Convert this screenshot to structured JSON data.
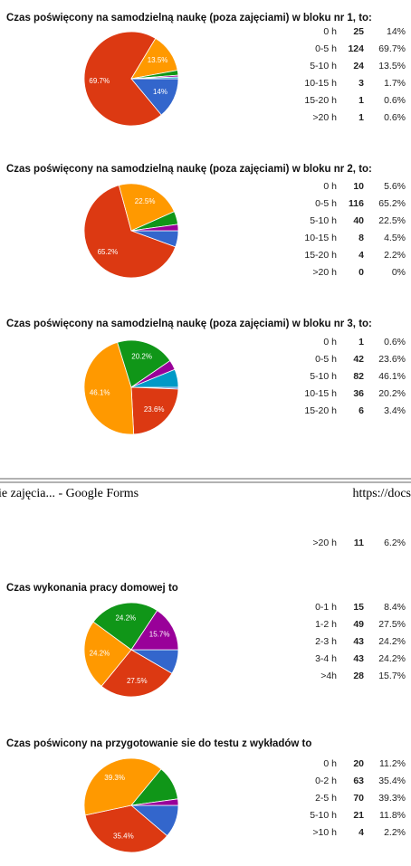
{
  "chart_data": [
    {
      "type": "pie",
      "title": "Czas poświęcony na samodzielną naukę (poza zajęciami) w bloku nr 1, to:",
      "categories": [
        "0 h",
        "0-5 h",
        "5-10 h",
        "10-15 h",
        "15-20 h",
        ">20 h"
      ],
      "counts": [
        25,
        124,
        24,
        3,
        1,
        1
      ],
      "values": [
        14,
        69.7,
        13.5,
        1.7,
        0.6,
        0.6
      ],
      "value_labels": [
        "14%",
        "69.7%",
        "13.5%",
        "1.7%",
        "0.6%",
        "0.6%"
      ],
      "colors": [
        "#3366cc",
        "#dc3912",
        "#ff9900",
        "#109618",
        "#990099",
        "#0099c6"
      ]
    },
    {
      "type": "pie",
      "title": "Czas poświęcony na samodzielną naukę (poza zajęciami) w bloku nr 2, to:",
      "categories": [
        "0 h",
        "0-5 h",
        "5-10 h",
        "10-15 h",
        "15-20 h",
        ">20 h"
      ],
      "counts": [
        10,
        116,
        40,
        8,
        4,
        0
      ],
      "values": [
        5.6,
        65.2,
        22.5,
        4.5,
        2.2,
        0
      ],
      "value_labels": [
        "5.6%",
        "65.2%",
        "22.5%",
        "4.5%",
        "2.2%",
        "0%"
      ],
      "colors": [
        "#3366cc",
        "#dc3912",
        "#ff9900",
        "#109618",
        "#990099",
        "#0099c6"
      ]
    },
    {
      "type": "pie",
      "title": "Czas poświęcony na samodzielną naukę (poza zajęciami) w bloku nr 3, to:",
      "categories": [
        "0 h",
        "0-5 h",
        "5-10 h",
        "10-15 h",
        "15-20 h",
        ">20 h"
      ],
      "counts": [
        1,
        42,
        82,
        36,
        6,
        11
      ],
      "values": [
        0.6,
        23.6,
        46.1,
        20.2,
        3.4,
        6.2
      ],
      "value_labels": [
        "0.6%",
        "23.6%",
        "46.1%",
        "20.2%",
        "3.4%",
        "6.2%"
      ],
      "colors": [
        "#3366cc",
        "#dc3912",
        "#ff9900",
        "#109618",
        "#990099",
        "#0099c6"
      ]
    },
    {
      "type": "pie",
      "title": "Czas wykonania pracy domowej to",
      "categories": [
        "0-1 h",
        "1-2 h",
        "2-3 h",
        "3-4 h",
        ">4h"
      ],
      "counts": [
        15,
        49,
        43,
        43,
        28
      ],
      "values": [
        8.4,
        27.5,
        24.2,
        24.2,
        15.7
      ],
      "value_labels": [
        "8.4%",
        "27.5%",
        "24.2%",
        "24.2%",
        "15.7%"
      ],
      "colors": [
        "#3366cc",
        "#dc3912",
        "#ff9900",
        "#109618",
        "#990099"
      ]
    },
    {
      "type": "pie",
      "title": "Czas poświcony na przygotowanie sie do testu z wykładów to",
      "categories": [
        "0 h",
        "0-2 h",
        "2-5 h",
        "5-10 h",
        ">10 h"
      ],
      "counts": [
        20,
        63,
        70,
        21,
        4
      ],
      "values": [
        11.2,
        35.4,
        39.3,
        11.8,
        2.2
      ],
      "value_labels": [
        "11.2%",
        "35.4%",
        "39.3%",
        "11.8%",
        "2.2%"
      ],
      "colors": [
        "#3366cc",
        "#dc3912",
        "#ff9900",
        "#109618",
        "#990099"
      ]
    }
  ],
  "page_header": {
    "left": "ie zajęcia... - Google Forms",
    "right": "https://docs"
  }
}
